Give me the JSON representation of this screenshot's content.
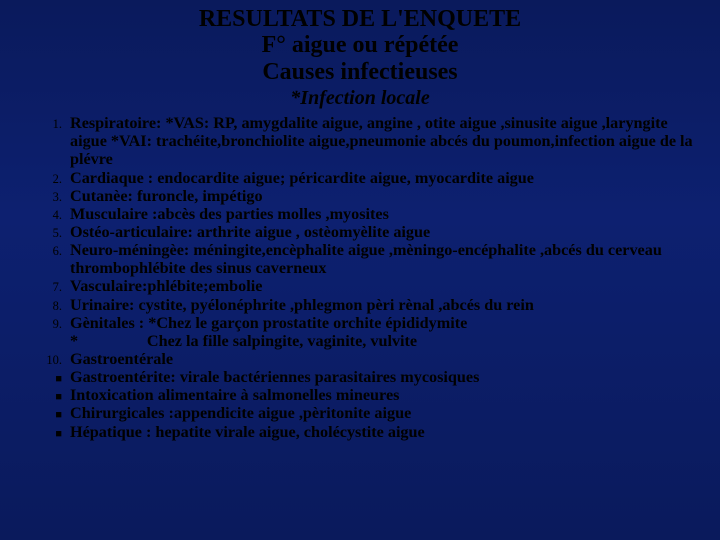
{
  "slide": {
    "title_line1": "RESULTATS DE L'ENQUETE",
    "title_line2": "F° aigue ou répétée",
    "title_line3": "Causes infectieuses",
    "subtitle": "*Infection locale",
    "background_gradient": [
      "#0a1a5c",
      "#0d2070",
      "#0a1a5c"
    ],
    "title_color": "#000000",
    "text_color": "#000000",
    "font_family": "Times New Roman",
    "title_fontsize": 24,
    "body_fontsize": 16.2,
    "items": [
      {
        "marker": "1.",
        "type": "num",
        "text": "Respiratoire: *VAS: RP, amygdalite aigue, angine , otite aigue ,sinusite aigue ,laryngite aigue *VAI: trachéite,bronchiolite aigue,pneumonie abcés du poumon,infection aigue de la plévre"
      },
      {
        "marker": "2.",
        "type": "num",
        "text": "Cardiaque : endocardite aigue; péricardite aigue, myocardite aigue"
      },
      {
        "marker": "3.",
        "type": "num",
        "text": "Cutanèe: furoncle, impétigo"
      },
      {
        "marker": "4.",
        "type": "num",
        "text": "Musculaire :abcès des parties molles ,myosites"
      },
      {
        "marker": "5.",
        "type": "num",
        "text": "Ostéo-articulaire: arthrite aigue , ostèomyèlite aigue"
      },
      {
        "marker": "6.",
        "type": "num",
        "text": "Neuro-méningèe: méningite,encèphalite aigue ,mèningo-encéphalite ,abcés du cerveau thrombophlébite des sinus caverneux"
      },
      {
        "marker": "7.",
        "type": "num",
        "text": "Vasculaire:phlébite;embolie"
      },
      {
        "marker": "8.",
        "type": "num",
        "text": "Urinaire: cystite, pyélonéphrite ,phlegmon pèri rènal ,abcés du rein"
      },
      {
        "marker": "9.",
        "type": "num",
        "text": "Gènitales : *Chez le garçon prostatite orchite épididymite"
      },
      {
        "marker": "",
        "type": "sub",
        "text": "*                 Chez la fille salpingite, vaginite, vulvite"
      },
      {
        "marker": "10.",
        "type": "num",
        "text": "Gastroentérale"
      },
      {
        "marker": "■",
        "type": "bullet",
        "text": "Gastroentérite: virale bactériennes  parasitaires mycosiques"
      },
      {
        "marker": "■",
        "type": "bullet",
        "text": " Intoxication alimentaire à salmonelles mineures"
      },
      {
        "marker": "■",
        "type": "bullet",
        "text": "Chirurgicales :appendicite aigue ,pèritonite aigue"
      },
      {
        "marker": "■",
        "type": "bullet",
        "text": "Hépatique : hepatite virale aigue, cholécystite aigue"
      }
    ]
  }
}
